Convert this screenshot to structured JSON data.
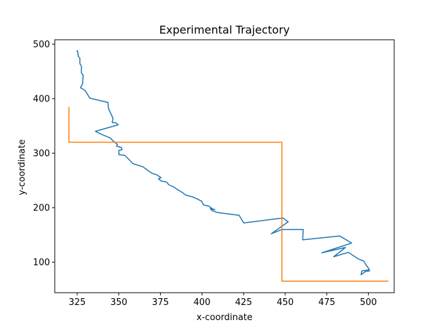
{
  "chart_data": {
    "type": "line",
    "title": "Experimental Trajectory",
    "xlabel": "x-coordinate",
    "ylabel": "y-coordinate",
    "xlim": [
      311.5,
      515.5
    ],
    "ylim": [
      44,
      508
    ],
    "xticks": [
      325,
      350,
      375,
      400,
      425,
      450,
      475,
      500
    ],
    "yticks": [
      100,
      200,
      300,
      400,
      500
    ],
    "grid": false,
    "series": [
      {
        "color": "#1f77b4",
        "points": [
          [
            325.5,
            488
          ],
          [
            324.8,
            487.5
          ],
          [
            325.4,
            485
          ],
          [
            325.6,
            478
          ],
          [
            326.6,
            474
          ],
          [
            326.6,
            464
          ],
          [
            327.5,
            460
          ],
          [
            327.5,
            447
          ],
          [
            328.6,
            443
          ],
          [
            328.2,
            427
          ],
          [
            327.0,
            420
          ],
          [
            329.8,
            415
          ],
          [
            332.5,
            401
          ],
          [
            343.5,
            393
          ],
          [
            343.8,
            382
          ],
          [
            346.5,
            364
          ],
          [
            346.1,
            356
          ],
          [
            348.1,
            356
          ],
          [
            349.6,
            352
          ],
          [
            335.9,
            340
          ],
          [
            340.0,
            334
          ],
          [
            344.7,
            328
          ],
          [
            346.8,
            322
          ],
          [
            349.2,
            316
          ],
          [
            348.6,
            313
          ],
          [
            351.7,
            310
          ],
          [
            351.9,
            306
          ],
          [
            350.0,
            305
          ],
          [
            350.1,
            297
          ],
          [
            353.6,
            296
          ],
          [
            356.2,
            288
          ],
          [
            358.4,
            281
          ],
          [
            361.3,
            278
          ],
          [
            364.5,
            275
          ],
          [
            367.1,
            269
          ],
          [
            370.0,
            263
          ],
          [
            372.9,
            260
          ],
          [
            375.4,
            255
          ],
          [
            373.8,
            253
          ],
          [
            375.4,
            249
          ],
          [
            378.8,
            247
          ],
          [
            380.0,
            242
          ],
          [
            383.0,
            238
          ],
          [
            385.4,
            233
          ],
          [
            387.6,
            229
          ],
          [
            390.3,
            223
          ],
          [
            394.0,
            220
          ],
          [
            397.1,
            216
          ],
          [
            399.7,
            212
          ],
          [
            400.9,
            205
          ],
          [
            404.0,
            203
          ],
          [
            406.2,
            198
          ],
          [
            407.7,
            196
          ],
          [
            404.9,
            198
          ],
          [
            406.3,
            194
          ],
          [
            409.5,
            191
          ],
          [
            422.3,
            186
          ],
          [
            425.1,
            172
          ],
          [
            448.6,
            181
          ],
          [
            451.8,
            174
          ],
          [
            441.6,
            152
          ],
          [
            448.1,
            160
          ],
          [
            460.8,
            160
          ],
          [
            460.5,
            141
          ],
          [
            482.8,
            148
          ],
          [
            489.9,
            135
          ],
          [
            472.0,
            117
          ],
          [
            486.2,
            127
          ],
          [
            479.2,
            110
          ],
          [
            488.0,
            118
          ],
          [
            493.9,
            106
          ],
          [
            497.2,
            102
          ],
          [
            498.4,
            96
          ],
          [
            500.6,
            86
          ],
          [
            496.1,
            84
          ],
          [
            495.6,
            77
          ],
          [
            498.3,
            83
          ],
          [
            500.9,
            84
          ]
        ]
      },
      {
        "color": "#ff7f0e",
        "points": [
          [
            320,
            385
          ],
          [
            320,
            320
          ],
          [
            448,
            320
          ],
          [
            448,
            65
          ],
          [
            512,
            65
          ]
        ]
      }
    ]
  }
}
